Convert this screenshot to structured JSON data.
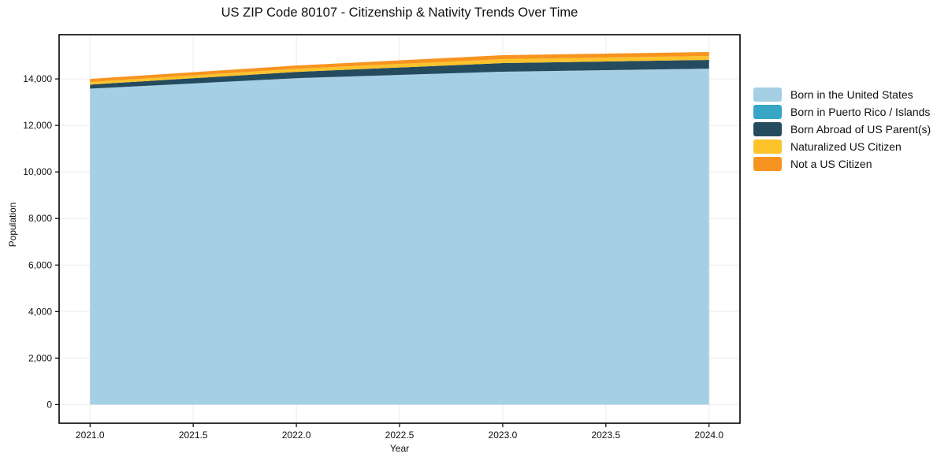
{
  "chart_data": {
    "type": "area",
    "stacked": true,
    "title": "US ZIP Code 80107 - Citizenship & Nativity Trends Over Time",
    "xlabel": "Year",
    "ylabel": "Population",
    "x": [
      2021,
      2022,
      2023,
      2024
    ],
    "series": [
      {
        "name": "Born in the United States",
        "color": "#a5cfe4",
        "values": [
          13580,
          14030,
          14310,
          14440
        ]
      },
      {
        "name": "Born in Puerto Rico / Islands",
        "color": "#38a6c5",
        "values": [
          0,
          0,
          0,
          0
        ]
      },
      {
        "name": "Born Abroad of US Parent(s)",
        "color": "#254b5f",
        "values": [
          175,
          270,
          370,
          375
        ]
      },
      {
        "name": "Naturalized US Citizen",
        "color": "#fcc32b",
        "values": [
          110,
          135,
          170,
          170
        ]
      },
      {
        "name": "Not a US Citizen",
        "color": "#f7941f",
        "values": [
          135,
          140,
          170,
          170
        ]
      }
    ],
    "xlim": [
      2020.85,
      2024.15
    ],
    "ylim": [
      -800,
      15900
    ],
    "xticks": {
      "values": [
        2021.0,
        2021.5,
        2022.0,
        2022.5,
        2023.0,
        2023.5,
        2024.0
      ],
      "labels": [
        "2021.0",
        "2021.5",
        "2022.0",
        "2022.5",
        "2023.0",
        "2023.5",
        "2024.0"
      ]
    },
    "yticks": {
      "values": [
        0,
        2000,
        4000,
        6000,
        8000,
        10000,
        12000,
        14000
      ],
      "labels": [
        "0",
        "2,000",
        "4,000",
        "6,000",
        "8,000",
        "10,000",
        "12,000",
        "14,000"
      ]
    },
    "grid": true,
    "grid_color": "#ececec",
    "axis_color": "#000000",
    "legend_position": "right"
  }
}
